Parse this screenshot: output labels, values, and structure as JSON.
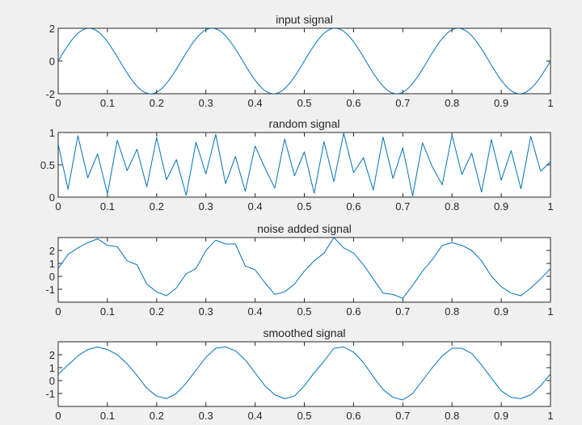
{
  "chart_data": [
    {
      "type": "line",
      "title": "input signal",
      "xlabel": "",
      "ylabel": "",
      "xlim": [
        0,
        1
      ],
      "ylim": [
        -2,
        2
      ],
      "xticks": [
        0,
        0.1,
        0.2,
        0.3,
        0.4,
        0.5,
        0.6,
        0.7,
        0.8,
        0.9,
        1
      ],
      "xtick_labels": [
        "0",
        "0.1",
        "0.2",
        "0.3",
        "0.4",
        "0.5",
        "0.6",
        "0.7",
        "0.8",
        "0.9",
        "1"
      ],
      "yticks": [
        -2,
        0,
        2
      ],
      "ytick_labels": [
        "-2",
        "0",
        "2"
      ],
      "grid": false,
      "line_color": "#0072bd",
      "series": [
        {
          "x": [
            0,
            0.0625,
            0.125,
            0.1875,
            0.25,
            0.3125,
            0.375,
            0.4375,
            0.5,
            0.5625,
            0.625,
            0.6875,
            0.75,
            0.8125,
            0.875,
            0.9375,
            1
          ],
          "y": [
            0,
            2,
            0,
            -2,
            0,
            2,
            0,
            -2,
            0,
            2,
            0,
            -2,
            0,
            2,
            0,
            -2,
            0
          ]
        }
      ]
    },
    {
      "type": "line",
      "title": "random signal",
      "xlabel": "",
      "ylabel": "",
      "xlim": [
        0,
        1
      ],
      "ylim": [
        0,
        1
      ],
      "xticks": [
        0,
        0.1,
        0.2,
        0.3,
        0.4,
        0.5,
        0.6,
        0.7,
        0.8,
        0.9,
        1
      ],
      "xtick_labels": [
        "0",
        "0.1",
        "0.2",
        "0.3",
        "0.4",
        "0.5",
        "0.6",
        "0.7",
        "0.8",
        "0.9",
        "1"
      ],
      "yticks": [
        0,
        0.5,
        1
      ],
      "ytick_labels": [
        "0",
        "0.5",
        "1"
      ],
      "grid": false,
      "line_color": "#0072bd",
      "series": [
        {
          "x": [
            0,
            0.02,
            0.04,
            0.06,
            0.08,
            0.1,
            0.12,
            0.14,
            0.16,
            0.18,
            0.2,
            0.22,
            0.24,
            0.26,
            0.28,
            0.3,
            0.32,
            0.34,
            0.36,
            0.38,
            0.4,
            0.42,
            0.44,
            0.46,
            0.48,
            0.5,
            0.52,
            0.54,
            0.56,
            0.58,
            0.6,
            0.62,
            0.64,
            0.66,
            0.68,
            0.7,
            0.72,
            0.74,
            0.76,
            0.78,
            0.8,
            0.82,
            0.84,
            0.86,
            0.88,
            0.9,
            0.92,
            0.94,
            0.96,
            0.98,
            1
          ],
          "y": [
            0.82,
            0.12,
            0.95,
            0.3,
            0.67,
            0.05,
            0.88,
            0.41,
            0.74,
            0.16,
            0.92,
            0.27,
            0.58,
            0.03,
            0.85,
            0.36,
            0.97,
            0.21,
            0.63,
            0.09,
            0.79,
            0.45,
            0.14,
            0.9,
            0.33,
            0.7,
            0.06,
            0.86,
            0.24,
            0.99,
            0.38,
            0.61,
            0.11,
            0.93,
            0.29,
            0.76,
            0.02,
            0.84,
            0.47,
            0.19,
            0.96,
            0.35,
            0.68,
            0.08,
            0.89,
            0.26,
            0.72,
            0.13,
            0.94,
            0.4,
            0.55
          ]
        }
      ]
    },
    {
      "type": "line",
      "title": "noise added signal",
      "xlabel": "",
      "ylabel": "",
      "xlim": [
        0,
        1
      ],
      "ylim": [
        -2,
        3
      ],
      "xticks": [
        0,
        0.1,
        0.2,
        0.3,
        0.4,
        0.5,
        0.6,
        0.7,
        0.8,
        0.9,
        1
      ],
      "xtick_labels": [
        "0",
        "0.1",
        "0.2",
        "0.3",
        "0.4",
        "0.5",
        "0.6",
        "0.7",
        "0.8",
        "0.9",
        "1"
      ],
      "yticks": [
        -1,
        0,
        1,
        2
      ],
      "ytick_labels": [
        "-1",
        "0",
        "1",
        "2"
      ],
      "grid": false,
      "line_color": "#0072bd",
      "series": [
        {
          "x": [
            0,
            0.02,
            0.04,
            0.06,
            0.08,
            0.1,
            0.12,
            0.14,
            0.16,
            0.18,
            0.2,
            0.22,
            0.24,
            0.26,
            0.28,
            0.3,
            0.32,
            0.34,
            0.36,
            0.38,
            0.4,
            0.42,
            0.44,
            0.46,
            0.48,
            0.5,
            0.52,
            0.54,
            0.56,
            0.58,
            0.6,
            0.62,
            0.64,
            0.66,
            0.68,
            0.7,
            0.72,
            0.74,
            0.76,
            0.78,
            0.8,
            0.82,
            0.84,
            0.86,
            0.88,
            0.9,
            0.92,
            0.94,
            0.96,
            0.98,
            1
          ],
          "y": [
            0.6,
            1.7,
            2.2,
            2.6,
            2.9,
            2.4,
            2.3,
            1.2,
            0.9,
            -0.6,
            -1.2,
            -1.5,
            -0.9,
            0.2,
            0.6,
            2.0,
            2.8,
            2.5,
            2.5,
            0.8,
            0.5,
            -0.5,
            -1.4,
            -1.2,
            -0.6,
            0.4,
            1.2,
            1.8,
            3.0,
            2.2,
            1.8,
            0.9,
            -0.2,
            -1.3,
            -1.4,
            -1.7,
            -0.7,
            0.4,
            1.3,
            2.4,
            2.6,
            2.4,
            2.0,
            1.2,
            0.0,
            -0.8,
            -1.3,
            -1.5,
            -0.9,
            -0.2,
            0.6
          ]
        }
      ]
    },
    {
      "type": "line",
      "title": "smoothed signal",
      "xlabel": "",
      "ylabel": "",
      "xlim": [
        0,
        1
      ],
      "ylim": [
        -2,
        3
      ],
      "xticks": [
        0,
        0.1,
        0.2,
        0.3,
        0.4,
        0.5,
        0.6,
        0.7,
        0.8,
        0.9,
        1
      ],
      "xtick_labels": [
        "0",
        "0.1",
        "0.2",
        "0.3",
        "0.4",
        "0.5",
        "0.6",
        "0.7",
        "0.8",
        "0.9",
        "1"
      ],
      "yticks": [
        -1,
        0,
        1,
        2
      ],
      "ytick_labels": [
        "-1",
        "0",
        "1",
        "2"
      ],
      "grid": false,
      "line_color": "#0072bd",
      "series": [
        {
          "x": [
            0,
            0.02,
            0.04,
            0.06,
            0.08,
            0.1,
            0.12,
            0.14,
            0.16,
            0.18,
            0.2,
            0.22,
            0.24,
            0.26,
            0.28,
            0.3,
            0.32,
            0.34,
            0.36,
            0.38,
            0.4,
            0.42,
            0.44,
            0.46,
            0.48,
            0.5,
            0.52,
            0.54,
            0.56,
            0.58,
            0.6,
            0.62,
            0.64,
            0.66,
            0.68,
            0.7,
            0.72,
            0.74,
            0.76,
            0.78,
            0.8,
            0.82,
            0.84,
            0.86,
            0.88,
            0.9,
            0.92,
            0.94,
            0.96,
            0.98,
            1
          ],
          "y": [
            0.5,
            1.2,
            1.9,
            2.4,
            2.6,
            2.4,
            2.0,
            1.3,
            0.4,
            -0.6,
            -1.2,
            -1.4,
            -1.0,
            -0.2,
            0.8,
            1.8,
            2.5,
            2.6,
            2.3,
            1.6,
            0.6,
            -0.4,
            -1.1,
            -1.4,
            -1.2,
            -0.4,
            0.6,
            1.5,
            2.5,
            2.6,
            2.2,
            1.4,
            0.3,
            -0.7,
            -1.3,
            -1.5,
            -1.0,
            0.0,
            1.0,
            1.9,
            2.5,
            2.5,
            2.1,
            1.2,
            0.2,
            -0.8,
            -1.3,
            -1.4,
            -1.1,
            -0.4,
            0.5
          ]
        }
      ]
    }
  ]
}
